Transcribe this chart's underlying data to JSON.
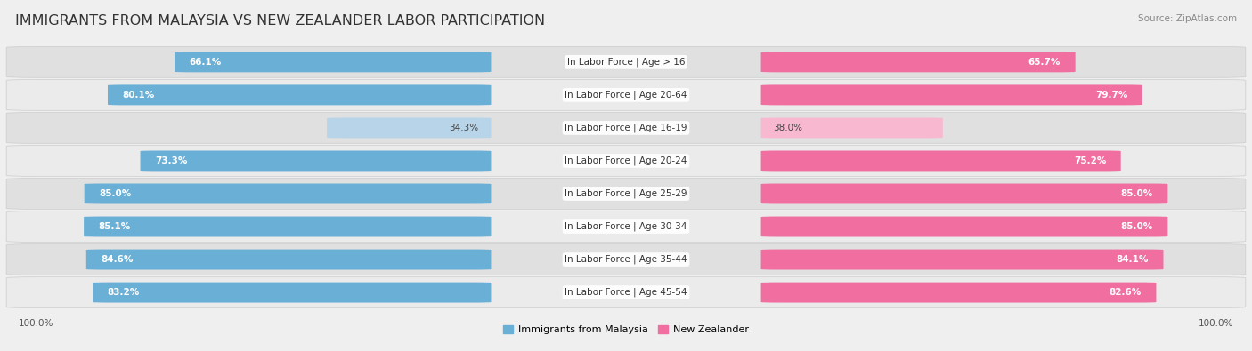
{
  "title": "IMMIGRANTS FROM MALAYSIA VS NEW ZEALANDER LABOR PARTICIPATION",
  "source": "Source: ZipAtlas.com",
  "categories": [
    "In Labor Force | Age > 16",
    "In Labor Force | Age 20-64",
    "In Labor Force | Age 16-19",
    "In Labor Force | Age 20-24",
    "In Labor Force | Age 25-29",
    "In Labor Force | Age 30-34",
    "In Labor Force | Age 35-44",
    "In Labor Force | Age 45-54"
  ],
  "malaysia_values": [
    66.1,
    80.1,
    34.3,
    73.3,
    85.0,
    85.1,
    84.6,
    83.2
  ],
  "nz_values": [
    65.7,
    79.7,
    38.0,
    75.2,
    85.0,
    85.0,
    84.1,
    82.6
  ],
  "malaysia_color": "#6aafd6",
  "malaysia_color_light": "#b8d4e8",
  "nz_color": "#f06ea0",
  "nz_color_light": "#f7b8d0",
  "row_bg_odd": "#e8e8e8",
  "row_bg_even": "#f2f2f2",
  "bg_color": "#efefef",
  "legend_malaysia": "Immigrants from Malaysia",
  "legend_nz": "New Zealander",
  "title_fontsize": 11.5,
  "cat_fontsize": 7.5,
  "value_fontsize": 7.5,
  "source_fontsize": 7.5,
  "legend_fontsize": 8
}
